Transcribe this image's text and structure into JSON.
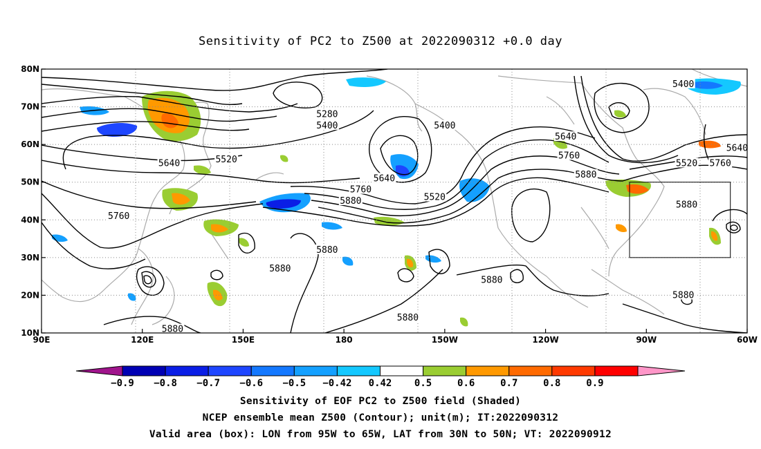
{
  "title": "Sensitivity of PC2 to Z500 at 2022090312 +0.0 day",
  "map": {
    "lon_ticks": [
      "90E",
      "120E",
      "150E",
      "180",
      "150W",
      "120W",
      "90W",
      "60W"
    ],
    "lat_ticks": [
      "80N",
      "70N",
      "60N",
      "50N",
      "40N",
      "30N",
      "20N",
      "10N"
    ],
    "contour_labels": [
      {
        "text": "5280",
        "lon": 175,
        "lat": 68
      },
      {
        "text": "5400",
        "lon": 175,
        "lat": 65
      },
      {
        "text": "5520",
        "lon": 145,
        "lat": 56
      },
      {
        "text": "5640",
        "lon": 128,
        "lat": 55
      },
      {
        "text": "5760",
        "lon": 113,
        "lat": 41
      },
      {
        "text": "5640",
        "lon": 192,
        "lat": 51
      },
      {
        "text": "5760",
        "lon": 185,
        "lat": 48
      },
      {
        "text": "5880",
        "lon": 182,
        "lat": 45
      },
      {
        "text": "5400",
        "lon": 210,
        "lat": 65
      },
      {
        "text": "5520",
        "lon": 207,
        "lat": 46
      },
      {
        "text": "5880",
        "lon": 175,
        "lat": 32
      },
      {
        "text": "5880",
        "lon": 161,
        "lat": 27
      },
      {
        "text": "5880",
        "lon": 129,
        "lat": 11
      },
      {
        "text": "5880",
        "lon": 199,
        "lat": 14
      },
      {
        "text": "5880",
        "lon": 224,
        "lat": 24
      },
      {
        "text": "5640",
        "lon": 246,
        "lat": 62
      },
      {
        "text": "5760",
        "lon": 247,
        "lat": 57
      },
      {
        "text": "5880",
        "lon": 252,
        "lat": 52
      },
      {
        "text": "5400",
        "lon": 281,
        "lat": 76
      },
      {
        "text": "5520",
        "lon": 282,
        "lat": 55
      },
      {
        "text": "5880",
        "lon": 282,
        "lat": 44
      },
      {
        "text": "5640",
        "lon": 297,
        "lat": 59
      },
      {
        "text": "5760",
        "lon": 292,
        "lat": 55
      },
      {
        "text": "5880",
        "lon": 281,
        "lat": 20
      }
    ],
    "valid_box": {
      "lon_min": 265,
      "lon_max": 295,
      "lat_min": 30,
      "lat_max": 50
    }
  },
  "colorbar": {
    "labels": [
      "−0.9",
      "−0.8",
      "−0.7",
      "−0.6",
      "−0.5",
      "−0.42",
      "0.42",
      "0.5",
      "0.6",
      "0.7",
      "0.8",
      "0.9"
    ],
    "colors": [
      "#a0148c",
      "#0000b4",
      "#0a1ee6",
      "#1e46ff",
      "#1478ff",
      "#14a0ff",
      "#14c8ff",
      "#ffffff",
      "#9acd32",
      "#ff9900",
      "#ff6a00",
      "#ff3a00",
      "#ff0000",
      "#ff96c8"
    ]
  },
  "footer": {
    "line1": "Sensitivity of EOF PC2 to Z500 field (Shaded)",
    "line2": "NCEP ensemble mean Z500 (Contour); unit(m); IT:2022090312",
    "line3": "Valid area (box): LON from 95W to 65W, LAT from 30N to 50N; VT: 2022090912"
  }
}
